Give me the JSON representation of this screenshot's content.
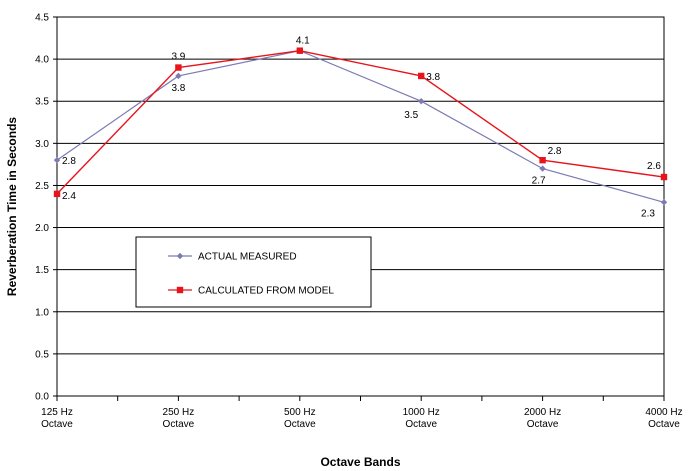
{
  "chart_data": {
    "type": "line",
    "title": "",
    "xlabel": "Octave Bands",
    "ylabel": "Reverberation Time in Seconds",
    "categories": [
      [
        "125 Hz",
        "Octave"
      ],
      [
        "250 Hz",
        "Octave"
      ],
      [
        "500 Hz",
        "Octave"
      ],
      [
        "1000 Hz",
        "Octave"
      ],
      [
        "2000 Hz",
        "Octave"
      ],
      [
        "4000 Hz",
        "Octave"
      ]
    ],
    "ylim": [
      0,
      4.5
    ],
    "yticks": [
      "0.0",
      "0.5",
      "1.0",
      "1.5",
      "2.0",
      "2.5",
      "3.0",
      "3.5",
      "4.0",
      "4.5"
    ],
    "grid": "horizontal",
    "legend_position": "inside-lower-left",
    "series": [
      {
        "name": "ACTUAL MEASURED",
        "color": "#7b7bb5",
        "marker": "diamond",
        "values": [
          2.8,
          3.8,
          4.1,
          3.5,
          2.7,
          2.3
        ],
        "labels": [
          "2.8",
          "3.8",
          "",
          "3.5",
          "2.7",
          "2.3"
        ]
      },
      {
        "name": "CALCULATED FROM MODEL",
        "color": "#e8141b",
        "marker": "square",
        "values": [
          2.4,
          3.9,
          4.1,
          3.8,
          2.8,
          2.6
        ],
        "labels": [
          "2.4",
          "3.9",
          "4.1",
          "3.8",
          "2.8",
          "2.6"
        ]
      }
    ]
  }
}
